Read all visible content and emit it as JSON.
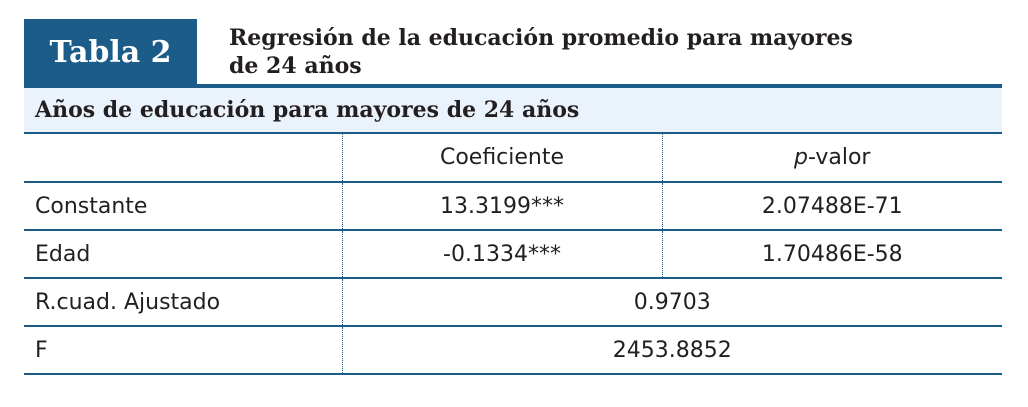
{
  "badge": "Tabla 2",
  "title": {
    "line1": "Regresión de la educación promedio para mayores",
    "line2": "de 24 años"
  },
  "section_header": "Años de educación para mayores de 24 años",
  "table": {
    "headers": {
      "col1": "",
      "col2": "Coeficiente",
      "col3_italic": "p",
      "col3_rest": "-valor"
    },
    "rows": [
      {
        "label": "Constante",
        "coef": "13.3199***",
        "pvalue": "2.07488E-71"
      },
      {
        "label": "Edad",
        "coef": "-0.1334***",
        "pvalue": "1.70486E-58"
      }
    ],
    "summary": [
      {
        "label": "R.cuad. Ajustado",
        "value": "0.9703"
      },
      {
        "label": "F",
        "value": "2453.8852"
      }
    ]
  },
  "colors": {
    "accent": "#1c5c89",
    "section_bg": "#eaf2fb",
    "text": "#231f20"
  }
}
